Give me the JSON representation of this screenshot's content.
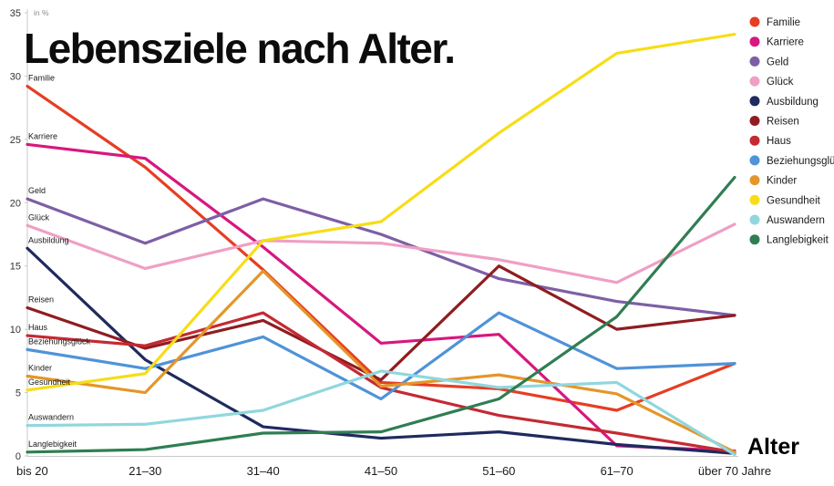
{
  "title": "Lebensziele nach Alter.",
  "axis": {
    "unit_label": "in %",
    "x_label": "Alter"
  },
  "colors": {
    "background": "#ffffff",
    "axis_line": "#c9c9c9",
    "tick_text": "#333333",
    "label_text": "#1a1a1a",
    "unit_text": "#8a8a8a"
  },
  "chart_data": {
    "type": "line",
    "title": "Lebensziele nach Alter.",
    "xlabel": "Alter",
    "ylabel": "in %",
    "ylim": [
      0,
      35
    ],
    "yticks": [
      0,
      5,
      10,
      15,
      20,
      25,
      30,
      35
    ],
    "grid": false,
    "legend_position": "top-right",
    "categories": [
      "bis 20",
      "21–30",
      "31–40",
      "41–50",
      "51–60",
      "61–70",
      "über 70 Jahre"
    ],
    "series": [
      {
        "name": "Familie",
        "color": "#e63e23",
        "values": [
          29.2,
          22.8,
          14.7,
          5.8,
          5.3,
          3.6,
          7.3
        ]
      },
      {
        "name": "Karriere",
        "color": "#d6187f",
        "values": [
          24.6,
          23.5,
          16.5,
          8.9,
          9.6,
          0.8,
          0.4
        ]
      },
      {
        "name": "Geld",
        "color": "#7d5fa5",
        "values": [
          20.3,
          16.8,
          20.3,
          17.5,
          14.0,
          12.2,
          11.1
        ]
      },
      {
        "name": "Glück",
        "color": "#ef9fc4",
        "values": [
          18.2,
          14.8,
          17.0,
          16.8,
          15.5,
          13.7,
          18.3
        ]
      },
      {
        "name": "Ausbildung",
        "color": "#1f2a5e",
        "values": [
          16.4,
          7.6,
          2.3,
          1.4,
          1.9,
          0.9,
          0.2
        ]
      },
      {
        "name": "Reisen",
        "color": "#8f1d21",
        "values": [
          11.7,
          8.5,
          10.7,
          6.0,
          15.0,
          10.0,
          11.1
        ]
      },
      {
        "name": "Haus",
        "color": "#c42a33",
        "values": [
          9.5,
          8.7,
          11.3,
          5.4,
          3.2,
          1.8,
          0.3
        ]
      },
      {
        "name": "Beziehungsglück",
        "color": "#4f93d8",
        "values": [
          8.4,
          6.9,
          9.4,
          4.5,
          11.3,
          6.9,
          7.3
        ]
      },
      {
        "name": "Kinder",
        "color": "#e39629",
        "values": [
          6.3,
          5.0,
          14.6,
          5.5,
          6.4,
          4.9,
          0.3
        ]
      },
      {
        "name": "Gesundheit",
        "color": "#f7dd17",
        "values": [
          5.2,
          6.5,
          17.0,
          18.5,
          25.5,
          31.8,
          33.3
        ]
      },
      {
        "name": "Auswandern",
        "color": "#90d7de",
        "values": [
          2.4,
          2.5,
          3.6,
          6.7,
          5.4,
          5.8,
          0.1
        ]
      },
      {
        "name": "Langlebigkeit",
        "color": "#2f7e52",
        "values": [
          0.3,
          0.5,
          1.8,
          1.9,
          4.5,
          11.0,
          22.0
        ]
      }
    ]
  }
}
